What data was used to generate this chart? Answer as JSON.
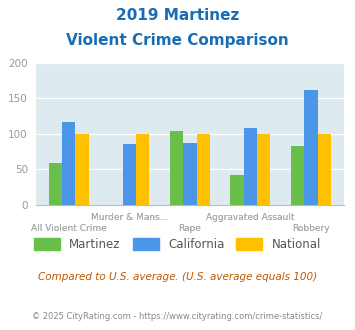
{
  "title_line1": "2019 Martinez",
  "title_line2": "Violent Crime Comparison",
  "categories": [
    "All Violent Crime",
    "Murder & Mans...",
    "Rape",
    "Aggravated Assault",
    "Robbery"
  ],
  "martinez": [
    58,
    null,
    104,
    42,
    82
  ],
  "california": [
    117,
    86,
    87,
    108,
    162
  ],
  "national": [
    100,
    100,
    100,
    100,
    100
  ],
  "martinez_color": "#6abf4b",
  "california_color": "#4b96e8",
  "national_color": "#ffc000",
  "title_color": "#1a6db5",
  "bg_color": "#ddeaf0",
  "ylim": [
    0,
    200
  ],
  "yticks": [
    0,
    50,
    100,
    150,
    200
  ],
  "bar_width": 0.22,
  "legend_labels": [
    "Martinez",
    "California",
    "National"
  ],
  "subtitle_text": "Compared to U.S. average. (U.S. average equals 100)",
  "footer_text": "© 2025 CityRating.com - https://www.cityrating.com/crime-statistics/",
  "label_top": [
    "",
    "Murder & Mans...",
    "",
    "Aggravated Assault",
    ""
  ],
  "label_bot": [
    "All Violent Crime",
    "",
    "Rape",
    "",
    "Robbery"
  ]
}
